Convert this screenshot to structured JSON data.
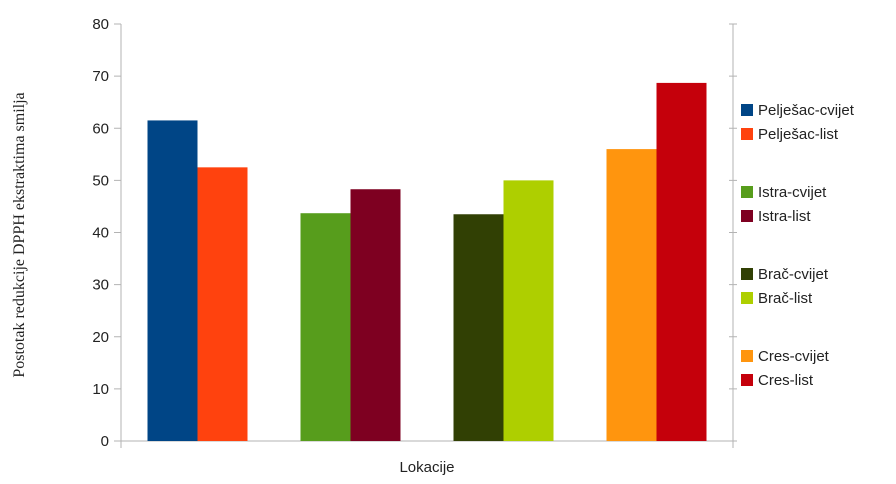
{
  "chart_data": {
    "type": "bar",
    "title": "",
    "xlabel": "Lokacije",
    "ylabel": "Postotak redukcije DPPH ekstraktima smilja",
    "ylim": [
      0,
      80
    ],
    "yticks": [
      0,
      10,
      20,
      30,
      40,
      50,
      60,
      70,
      80
    ],
    "grid": false,
    "legend_position": "right",
    "groups": [
      {
        "series": [
          {
            "name": "Pelješac-cvijet",
            "value": 61.5,
            "color": "#004586"
          },
          {
            "name": "Pelješac-list",
            "value": 52.5,
            "color": "#ff420e"
          }
        ]
      },
      {
        "series": [
          {
            "name": "Istra-cvijet",
            "value": 43.7,
            "color": "#579d1c"
          },
          {
            "name": "Istra-list",
            "value": 48.3,
            "color": "#7e0021"
          }
        ]
      },
      {
        "series": [
          {
            "name": "Brač-cvijet",
            "value": 43.5,
            "color": "#314004"
          },
          {
            "name": "Brač-list",
            "value": 50.0,
            "color": "#aecf00"
          }
        ]
      },
      {
        "series": [
          {
            "name": "Cres-cvijet",
            "value": 56.0,
            "color": "#ff950e"
          },
          {
            "name": "Cres-list",
            "value": 68.7,
            "color": "#c5000b"
          }
        ]
      }
    ]
  }
}
